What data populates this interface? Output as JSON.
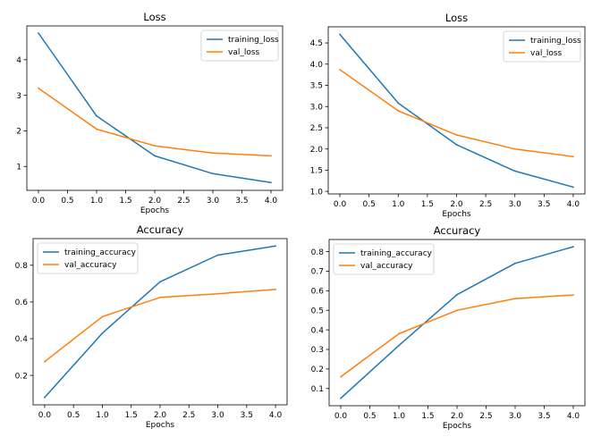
{
  "chart_data": [
    {
      "type": "line",
      "title": "Loss",
      "xlabel": "Epochs",
      "ylabel": "",
      "x": [
        0,
        1,
        2,
        3,
        4
      ],
      "xlim": [
        -0.2,
        4.2
      ],
      "ylim": [
        0.33,
        4.95
      ],
      "xticks": [
        "0.0",
        "0.5",
        "1.0",
        "1.5",
        "2.0",
        "2.5",
        "3.0",
        "3.5",
        "4.0"
      ],
      "yticks": [
        "1",
        "2",
        "3",
        "4"
      ],
      "legend_position": "top-right",
      "series": [
        {
          "name": "training_loss",
          "color": "#1f77b4",
          "values": [
            4.75,
            2.42,
            1.3,
            0.8,
            0.55
          ]
        },
        {
          "name": "val_loss",
          "color": "#ff7f0e",
          "values": [
            3.2,
            2.05,
            1.58,
            1.38,
            1.3
          ]
        }
      ]
    },
    {
      "type": "line",
      "title": "Loss",
      "xlabel": "Epochs",
      "ylabel": "",
      "x": [
        0,
        1,
        2,
        3,
        4
      ],
      "xlim": [
        -0.2,
        4.2
      ],
      "ylim": [
        0.94,
        4.88
      ],
      "xticks": [
        "0.0",
        "0.5",
        "1.0",
        "1.5",
        "2.0",
        "2.5",
        "3.0",
        "3.5",
        "4.0"
      ],
      "yticks": [
        "1.0",
        "1.5",
        "2.0",
        "2.5",
        "3.0",
        "3.5",
        "4.0",
        "4.5"
      ],
      "legend_position": "top-right",
      "series": [
        {
          "name": "training_loss",
          "color": "#1f77b4",
          "values": [
            4.7,
            3.08,
            2.1,
            1.48,
            1.1
          ]
        },
        {
          "name": "val_loss",
          "color": "#ff7f0e",
          "values": [
            3.87,
            2.9,
            2.33,
            2.0,
            1.82
          ]
        }
      ]
    },
    {
      "type": "line",
      "title": "Accuracy",
      "xlabel": "Epochs",
      "ylabel": "",
      "x": [
        0,
        1,
        2,
        3,
        4
      ],
      "xlim": [
        -0.2,
        4.2
      ],
      "ylim": [
        0.04,
        0.945
      ],
      "xticks": [
        "0.0",
        "0.5",
        "1.0",
        "1.5",
        "2.0",
        "2.5",
        "3.0",
        "3.5",
        "4.0"
      ],
      "yticks": [
        "0.2",
        "0.4",
        "0.6",
        "0.8"
      ],
      "legend_position": "top-left",
      "series": [
        {
          "name": "training_accuracy",
          "color": "#1f77b4",
          "values": [
            0.08,
            0.43,
            0.71,
            0.855,
            0.905
          ]
        },
        {
          "name": "val_accuracy",
          "color": "#ff7f0e",
          "values": [
            0.275,
            0.52,
            0.625,
            0.645,
            0.668
          ]
        }
      ]
    },
    {
      "type": "line",
      "title": "Accuracy",
      "xlabel": "Epochs",
      "ylabel": "",
      "x": [
        0,
        1,
        2,
        3,
        4
      ],
      "xlim": [
        -0.2,
        4.2
      ],
      "ylim": [
        0.012,
        0.862
      ],
      "xticks": [
        "0.0",
        "0.5",
        "1.0",
        "1.5",
        "2.0",
        "2.5",
        "3.0",
        "3.5",
        "4.0"
      ],
      "yticks": [
        "0.1",
        "0.2",
        "0.3",
        "0.4",
        "0.5",
        "0.6",
        "0.7",
        "0.8"
      ],
      "legend_position": "top-left",
      "series": [
        {
          "name": "training_accuracy",
          "color": "#1f77b4",
          "values": [
            0.05,
            0.32,
            0.58,
            0.74,
            0.825
          ]
        },
        {
          "name": "val_accuracy",
          "color": "#ff7f0e",
          "values": [
            0.16,
            0.38,
            0.5,
            0.56,
            0.578
          ]
        }
      ]
    }
  ]
}
